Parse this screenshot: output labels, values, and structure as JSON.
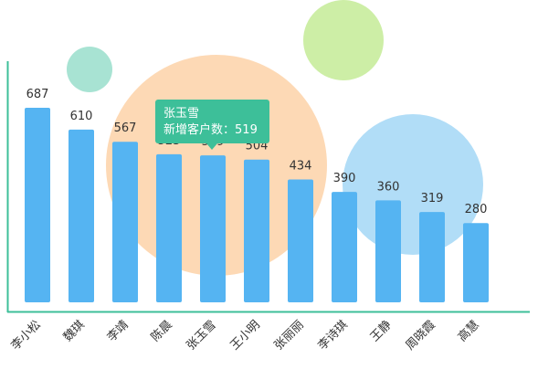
{
  "chart_data": {
    "type": "bar",
    "categories": [
      "李小松",
      "魏琪",
      "李靖",
      "陈晨",
      "张玉雪",
      "王小明",
      "张丽丽",
      "李诗琪",
      "王静",
      "周晓霞",
      "高慧"
    ],
    "values": [
      687,
      610,
      567,
      523,
      519,
      504,
      434,
      390,
      360,
      319,
      280
    ],
    "title": "",
    "xlabel": "",
    "ylabel": "",
    "grid": false,
    "bar_color": "#55b4f2",
    "axis_color": "#3dbf99",
    "data_labels": true
  },
  "tooltip": {
    "name": "张玉雪",
    "metric": "新增客户数",
    "separator": "：",
    "value": "519",
    "color": "#3dbf99"
  },
  "decorations": {
    "bubbles": [
      {
        "color": "#a8e3d3"
      },
      {
        "color": "#fdd9b5"
      },
      {
        "color": "#cdeea6"
      },
      {
        "color": "#b1ddf7"
      }
    ]
  }
}
